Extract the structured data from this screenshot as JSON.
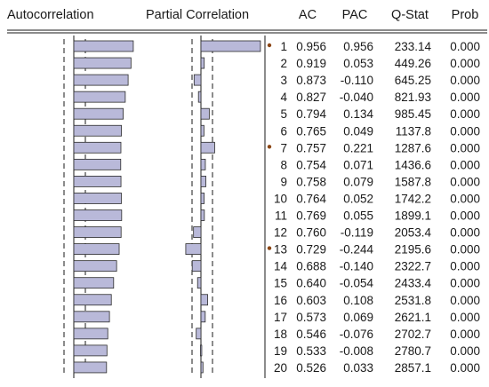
{
  "header": {
    "autocorrelation": "Autocorrelation",
    "partial_correlation": "Partial Correlation",
    "ac": "AC",
    "pac": "PAC",
    "q_stat": "Q-Stat",
    "prob": "Prob"
  },
  "chart_data": {
    "type": "table",
    "columns": [
      "",
      "AC",
      "PAC",
      "Q-Stat",
      "Prob"
    ],
    "rows": [
      {
        "lag": "1",
        "ac": "0.956",
        "pac": "0.956",
        "q": "233.14",
        "prob": "0.000"
      },
      {
        "lag": "2",
        "ac": "0.919",
        "pac": "0.053",
        "q": "449.26",
        "prob": "0.000"
      },
      {
        "lag": "3",
        "ac": "0.873",
        "pac": "-0.110",
        "q": "645.25",
        "prob": "0.000"
      },
      {
        "lag": "4",
        "ac": "0.827",
        "pac": "-0.040",
        "q": "821.93",
        "prob": "0.000"
      },
      {
        "lag": "5",
        "ac": "0.794",
        "pac": "0.134",
        "q": "985.45",
        "prob": "0.000"
      },
      {
        "lag": "6",
        "ac": "0.765",
        "pac": "0.049",
        "q": "1137.8",
        "prob": "0.000"
      },
      {
        "lag": "7",
        "ac": "0.757",
        "pac": "0.221",
        "q": "1287.6",
        "prob": "0.000"
      },
      {
        "lag": "8",
        "ac": "0.754",
        "pac": "0.071",
        "q": "1436.6",
        "prob": "0.000"
      },
      {
        "lag": "9",
        "ac": "0.758",
        "pac": "0.079",
        "q": "1587.8",
        "prob": "0.000"
      },
      {
        "lag": "10",
        "ac": "0.764",
        "pac": "0.052",
        "q": "1742.2",
        "prob": "0.000"
      },
      {
        "lag": "11",
        "ac": "0.769",
        "pac": "0.055",
        "q": "1899.1",
        "prob": "0.000"
      },
      {
        "lag": "12",
        "ac": "0.760",
        "pac": "-0.119",
        "q": "2053.4",
        "prob": "0.000"
      },
      {
        "lag": "13",
        "ac": "0.729",
        "pac": "-0.244",
        "q": "2195.6",
        "prob": "0.000"
      },
      {
        "lag": "14",
        "ac": "0.688",
        "pac": "-0.140",
        "q": "2322.7",
        "prob": "0.000"
      },
      {
        "lag": "15",
        "ac": "0.640",
        "pac": "-0.054",
        "q": "2433.4",
        "prob": "0.000"
      },
      {
        "lag": "16",
        "ac": "0.603",
        "pac": "0.108",
        "q": "2531.8",
        "prob": "0.000"
      },
      {
        "lag": "17",
        "ac": "0.573",
        "pac": "0.069",
        "q": "2621.1",
        "prob": "0.000"
      },
      {
        "lag": "18",
        "ac": "0.546",
        "pac": "-0.076",
        "q": "2702.7",
        "prob": "0.000"
      },
      {
        "lag": "19",
        "ac": "0.533",
        "pac": "-0.008",
        "q": "2780.7",
        "prob": "0.000"
      },
      {
        "lag": "20",
        "ac": "0.526",
        "pac": "0.033",
        "q": "2857.1",
        "prob": "0.000"
      }
    ],
    "ac_range": [
      -1,
      1
    ],
    "pac_range": [
      -1,
      1
    ],
    "marked_lags": [
      "1",
      "7",
      "13"
    ],
    "bar_color": "#b9b9d9",
    "marker_color": "#8b4513"
  }
}
